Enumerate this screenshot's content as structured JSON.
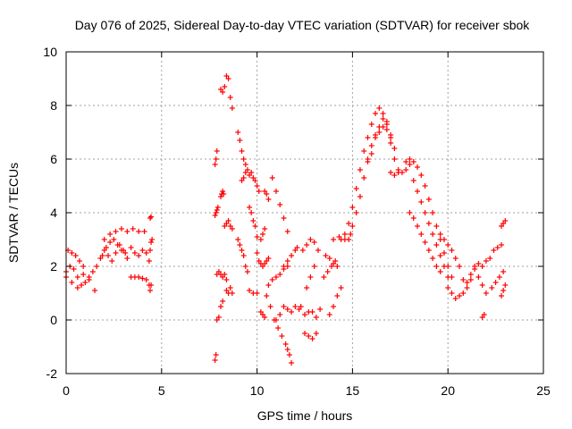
{
  "chart_data": {
    "type": "scatter",
    "title": "Day 076 of 2025, Sidereal Day-to-day VTEC variation (SDTVAR) for receiver sbok",
    "xlabel": "GPS time / hours",
    "ylabel": "SDTVAR / TECUs",
    "xlim": [
      0,
      25
    ],
    "ylim": [
      -2,
      10
    ],
    "xticks": [
      0,
      5,
      10,
      15,
      20,
      25
    ],
    "yticks": [
      -2,
      0,
      2,
      4,
      6,
      8,
      10
    ],
    "grid": true,
    "marker": "+",
    "color": "#ff0000",
    "series": [
      {
        "name": "sbok",
        "segments": [
          {
            "x": [
              0.0,
              0.3,
              0.6,
              0.9,
              1.2,
              1.5
            ],
            "y": [
              1.6,
              1.4,
              1.2,
              1.7,
              1.5,
              1.1
            ]
          },
          {
            "x": [
              0.0,
              0.2,
              0.4,
              0.6,
              0.8,
              1.0,
              1.2
            ],
            "y": [
              1.8,
              2.0,
              1.9,
              1.6,
              1.3,
              1.4,
              1.6
            ]
          },
          {
            "x": [
              0.1,
              0.3,
              0.5,
              0.7,
              0.9
            ],
            "y": [
              2.6,
              2.5,
              2.4,
              2.2,
              2.0
            ]
          },
          {
            "x": [
              1.4,
              1.6,
              1.8,
              2.0,
              2.2,
              2.4,
              2.6,
              2.8,
              3.0,
              3.2,
              3.4,
              3.6,
              3.8,
              4.0,
              4.2
            ],
            "y": [
              1.8,
              2.0,
              2.3,
              2.6,
              2.4,
              2.2,
              2.5,
              2.8,
              2.6,
              2.3,
              2.7,
              2.5,
              2.4,
              2.6,
              2.5
            ]
          },
          {
            "x": [
              2.0,
              2.3,
              2.6,
              2.9,
              3.2,
              3.5,
              3.8,
              4.1
            ],
            "y": [
              3.0,
              3.2,
              3.3,
              3.4,
              3.3,
              3.4,
              3.3,
              3.3
            ]
          },
          {
            "x": [
              1.9,
              2.1,
              2.3,
              2.5,
              2.7,
              2.9,
              3.1
            ],
            "y": [
              2.4,
              2.7,
              2.9,
              3.0,
              2.8,
              2.6,
              2.5
            ]
          },
          {
            "x": [
              3.4,
              3.6,
              3.8,
              4.0,
              4.2
            ],
            "y": [
              1.6,
              1.6,
              1.6,
              1.55,
              1.5
            ]
          },
          {
            "x": [
              4.35,
              4.4,
              4.45
            ],
            "y": [
              1.3,
              1.1,
              1.3
            ]
          },
          {
            "x": [
              4.35,
              4.4,
              4.45,
              4.5
            ],
            "y": [
              2.2,
              2.6,
              2.9,
              3.0
            ]
          },
          {
            "x": [
              4.4,
              4.45
            ],
            "y": [
              3.8,
              3.85
            ]
          },
          {
            "x": [
              7.8,
              7.85,
              7.9,
              8.0,
              8.1,
              8.2
            ],
            "y": [
              -1.5,
              -1.3,
              0.0,
              0.1,
              0.5,
              0.7
            ]
          },
          {
            "x": [
              7.8,
              7.85,
              7.9,
              7.95
            ],
            "y": [
              3.9,
              4.0,
              4.1,
              4.2
            ]
          },
          {
            "x": [
              7.8,
              7.85,
              7.9
            ],
            "y": [
              5.8,
              6.0,
              6.3
            ]
          },
          {
            "x": [
              8.1,
              8.15,
              8.2,
              8.25
            ],
            "y": [
              4.6,
              4.7,
              4.8,
              4.7
            ]
          },
          {
            "x": [
              8.1,
              8.2,
              8.3,
              8.4,
              8.5,
              8.6,
              8.7
            ],
            "y": [
              8.6,
              8.5,
              8.7,
              9.1,
              9.0,
              8.3,
              7.9
            ]
          },
          {
            "x": [
              7.9,
              8.0,
              8.1,
              8.2,
              8.3,
              8.4
            ],
            "y": [
              1.7,
              1.8,
              1.7,
              1.6,
              1.7,
              1.5
            ]
          },
          {
            "x": [
              8.3,
              8.4,
              8.5,
              8.6,
              8.7
            ],
            "y": [
              3.5,
              3.6,
              3.7,
              3.5,
              3.4
            ]
          },
          {
            "x": [
              8.4,
              8.5,
              8.6,
              8.7
            ],
            "y": [
              1.1,
              1.0,
              1.2,
              1.0
            ]
          },
          {
            "x": [
              9.0,
              9.1,
              9.2,
              9.3,
              9.4
            ],
            "y": [
              7.0,
              6.7,
              6.3,
              6.0,
              5.8
            ]
          },
          {
            "x": [
              9.0,
              9.1,
              9.2,
              9.3,
              9.4,
              9.5
            ],
            "y": [
              3.0,
              2.8,
              2.6,
              2.4,
              2.0,
              1.8
            ]
          },
          {
            "x": [
              9.2,
              9.3,
              9.4,
              9.5,
              9.6,
              9.7,
              9.8,
              9.9,
              10.0,
              10.1
            ],
            "y": [
              5.2,
              5.3,
              5.5,
              5.6,
              5.4,
              5.5,
              5.3,
              5.2,
              5.0,
              4.8
            ]
          },
          {
            "x": [
              9.6,
              9.7,
              9.8,
              9.9,
              10.0
            ],
            "y": [
              4.2,
              4.0,
              3.7,
              3.5,
              3.1
            ]
          },
          {
            "x": [
              9.6,
              9.8,
              10.0
            ],
            "y": [
              1.1,
              1.0,
              1.0
            ]
          },
          {
            "x": [
              10.0,
              10.1,
              10.2,
              10.3,
              10.4,
              10.5,
              10.6
            ],
            "y": [
              2.5,
              2.2,
              2.1,
              2.0,
              2.1,
              2.2,
              2.3
            ]
          },
          {
            "x": [
              10.2,
              10.3,
              10.4
            ],
            "y": [
              3.0,
              3.2,
              3.4
            ]
          },
          {
            "x": [
              10.4,
              10.5,
              10.6
            ],
            "y": [
              4.8,
              4.7,
              4.5
            ]
          },
          {
            "x": [
              10.2,
              10.3,
              10.4
            ],
            "y": [
              0.3,
              0.2,
              0.1
            ]
          },
          {
            "x": [
              10.5,
              10.7,
              10.9,
              11.1,
              11.3,
              11.5,
              11.6,
              11.7,
              11.8
            ],
            "y": [
              0.9,
              0.5,
              0.0,
              -0.3,
              -0.6,
              -0.9,
              -1.1,
              -1.3,
              -1.6
            ]
          },
          {
            "x": [
              10.6,
              10.8,
              11.0,
              11.2,
              11.4,
              11.6
            ],
            "y": [
              1.3,
              1.5,
              1.6,
              1.7,
              1.9,
              2.0
            ]
          },
          {
            "x": [
              11.0,
              11.2,
              11.4,
              11.6,
              11.8,
              12.0,
              12.2
            ],
            "y": [
              0.0,
              0.2,
              0.5,
              0.4,
              0.3,
              0.5,
              0.4
            ]
          },
          {
            "x": [
              10.8,
              11.0,
              11.2,
              11.4,
              11.6
            ],
            "y": [
              5.3,
              4.8,
              4.3,
              3.8,
              3.3
            ]
          },
          {
            "x": [
              11.4,
              11.6,
              11.8,
              12.0,
              12.1
            ],
            "y": [
              2.0,
              2.2,
              2.4,
              2.6,
              2.7
            ]
          },
          {
            "x": [
              12.3,
              12.5,
              12.7,
              12.9,
              13.1,
              13.3
            ],
            "y": [
              0.5,
              0.2,
              0.3,
              0.3,
              0.1,
              0.4
            ]
          },
          {
            "x": [
              12.5,
              12.7,
              12.9,
              13.1
            ],
            "y": [
              -0.5,
              -0.6,
              -0.7,
              -0.5
            ]
          },
          {
            "x": [
              12.4,
              12.6,
              12.8,
              13.0,
              13.2
            ],
            "y": [
              2.6,
              2.8,
              3.0,
              2.9,
              2.6
            ]
          },
          {
            "x": [
              12.6,
              12.8,
              13.0
            ],
            "y": [
              1.2,
              1.6,
              2.0
            ]
          },
          {
            "x": [
              13.5,
              13.7,
              13.9,
              14.1
            ],
            "y": [
              1.6,
              1.8,
              2.0,
              2.2
            ]
          },
          {
            "x": [
              13.6,
              13.8,
              14.0,
              14.2
            ],
            "y": [
              2.4,
              2.3,
              2.1,
              2.0
            ]
          },
          {
            "x": [
              13.8,
              14.0,
              14.2,
              14.4
            ],
            "y": [
              0.2,
              0.5,
              0.9,
              1.2
            ]
          },
          {
            "x": [
              14.0,
              14.3,
              14.6,
              14.9
            ],
            "y": [
              3.0,
              3.1,
              3.0,
              3.2
            ]
          },
          {
            "x": [
              14.4,
              14.6,
              14.8,
              15.0,
              15.2,
              15.4,
              15.6,
              15.8,
              16.0,
              16.2,
              16.4,
              16.6,
              16.8,
              17.0,
              17.2,
              17.4,
              17.6,
              17.8,
              18.0
            ],
            "y": [
              3.0,
              3.2,
              3.6,
              4.2,
              4.9,
              5.6,
              6.3,
              6.8,
              7.3,
              7.7,
              7.9,
              7.7,
              7.3,
              6.6,
              6.0,
              5.6,
              5.5,
              5.6,
              5.8
            ]
          },
          {
            "x": [
              14.8,
              15.0,
              15.2,
              15.4,
              15.6,
              15.8,
              16.0,
              16.2,
              16.4,
              16.6,
              16.8,
              17.0
            ],
            "y": [
              3.0,
              3.5,
              4.0,
              4.6,
              5.3,
              5.9,
              6.5,
              6.9,
              7.2,
              7.5,
              7.4,
              6.9
            ]
          },
          {
            "x": [
              15.8,
              16.0,
              16.2,
              16.4,
              16.6,
              16.8,
              17.0,
              17.2
            ],
            "y": [
              6.0,
              6.2,
              6.8,
              7.0,
              7.2,
              7.1,
              6.8,
              6.4
            ]
          },
          {
            "x": [
              17.0,
              17.2,
              17.4
            ],
            "y": [
              5.5,
              5.4,
              5.5
            ]
          },
          {
            "x": [
              17.8,
              18.0,
              18.2,
              18.4,
              18.6,
              18.8,
              19.0,
              19.2,
              19.4,
              19.6,
              19.8,
              20.0,
              20.2
            ],
            "y": [
              5.9,
              6.0,
              5.9,
              5.7,
              5.4,
              5.0,
              4.5,
              4.0,
              3.5,
              3.0,
              2.5,
              2.0,
              1.6
            ]
          },
          {
            "x": [
              18.2,
              18.4,
              18.6,
              18.8,
              19.0,
              19.2,
              19.4,
              19.6,
              19.8,
              20.0
            ],
            "y": [
              5.2,
              4.8,
              4.4,
              4.0,
              3.6,
              3.2,
              2.8,
              2.4,
              2.0,
              1.6
            ]
          },
          {
            "x": [
              18.0,
              18.2,
              18.4,
              18.6,
              18.8,
              19.0,
              19.2,
              19.4,
              19.6
            ],
            "y": [
              4.0,
              3.8,
              3.5,
              3.2,
              2.9,
              2.6,
              2.3,
              2.0,
              1.8
            ]
          },
          {
            "x": [
              19.6,
              19.8,
              20.0,
              20.2,
              20.4,
              20.6,
              20.8,
              21.0,
              21.2,
              21.4,
              21.6
            ],
            "y": [
              3.2,
              3.0,
              2.8,
              2.6,
              2.3,
              2.0,
              1.5,
              1.2,
              1.5,
              1.9,
              2.1
            ]
          },
          {
            "x": [
              20.0,
              20.2,
              20.4,
              20.6,
              20.8,
              21.0,
              21.2,
              21.4
            ],
            "y": [
              1.2,
              1.0,
              0.8,
              0.9,
              1.0,
              1.4,
              1.7,
              2.0
            ]
          },
          {
            "x": [
              21.6,
              21.8,
              22.0
            ],
            "y": [
              1.6,
              1.3,
              1.0
            ]
          },
          {
            "x": [
              21.8,
              22.0,
              22.2
            ],
            "y": [
              2.0,
              2.2,
              2.3
            ]
          },
          {
            "x": [
              21.8,
              21.9
            ],
            "y": [
              0.1,
              0.2
            ]
          },
          {
            "x": [
              22.4,
              22.6,
              22.8
            ],
            "y": [
              2.6,
              2.7,
              2.8
            ]
          },
          {
            "x": [
              22.3,
              22.5,
              22.7,
              22.9
            ],
            "y": [
              1.2,
              1.4,
              1.6,
              1.8
            ]
          },
          {
            "x": [
              22.8,
              22.9,
              23.0
            ],
            "y": [
              3.5,
              3.6,
              3.7
            ]
          },
          {
            "x": [
              22.8,
              22.9,
              23.0
            ],
            "y": [
              0.9,
              1.1,
              1.3
            ]
          }
        ]
      }
    ]
  }
}
